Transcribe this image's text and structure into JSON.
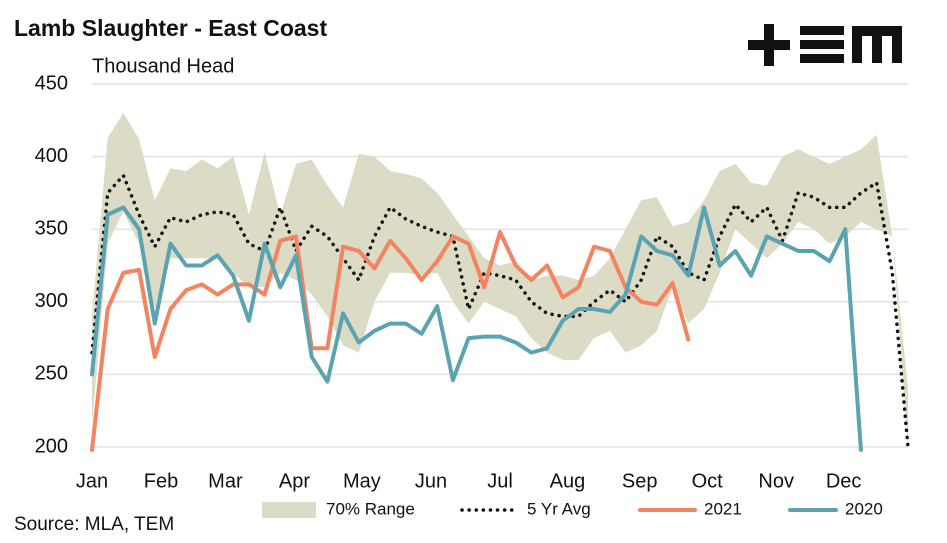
{
  "chart_data": {
    "type": "line",
    "title": "Lamb Slaughter - East Coast",
    "subtitle": "Thousand Head",
    "source": "Source: MLA, TEM",
    "x": [
      1,
      2,
      3,
      4,
      5,
      6,
      7,
      8,
      9,
      10,
      11,
      12,
      13,
      14,
      15,
      16,
      17,
      18,
      19,
      20,
      21,
      22,
      23,
      24,
      25,
      26,
      27,
      28,
      29,
      30,
      31,
      32,
      33,
      34,
      35,
      36,
      37,
      38,
      39,
      40,
      41,
      42,
      43,
      44,
      45,
      46,
      47,
      48,
      49,
      50,
      51,
      52,
      53
    ],
    "xlim": [
      1,
      53
    ],
    "xticks": [
      {
        "value": 1,
        "label": "Jan"
      },
      {
        "value": 5.4,
        "label": "Feb"
      },
      {
        "value": 9.5,
        "label": "Mar"
      },
      {
        "value": 13.9,
        "label": "Apr"
      },
      {
        "value": 18.2,
        "label": "May"
      },
      {
        "value": 22.6,
        "label": "Jun"
      },
      {
        "value": 27,
        "label": "Jul"
      },
      {
        "value": 31.3,
        "label": "Aug"
      },
      {
        "value": 35.9,
        "label": "Sep"
      },
      {
        "value": 40.2,
        "label": "Oct"
      },
      {
        "value": 44.6,
        "label": "Nov"
      },
      {
        "value": 48.9,
        "label": "Dec"
      }
    ],
    "ylim": [
      200,
      450
    ],
    "yticks": [
      200,
      250,
      300,
      350,
      400,
      450
    ],
    "grid": true,
    "legend": "bottom",
    "range": {
      "name": "70% Range",
      "color": "#dcdcc6",
      "upper": [
        290,
        413,
        430,
        412,
        370,
        392,
        390,
        398,
        392,
        400,
        360,
        403,
        360,
        395,
        398,
        380,
        365,
        402,
        400,
        390,
        388,
        385,
        375,
        360,
        345,
        330,
        325,
        328,
        315,
        318,
        318,
        315,
        318,
        330,
        350,
        370,
        372,
        352,
        355,
        370,
        390,
        395,
        382,
        380,
        400,
        405,
        400,
        395,
        400,
        405,
        415,
        345,
        240
      ],
      "lower": [
        215,
        340,
        362,
        340,
        295,
        330,
        330,
        330,
        330,
        320,
        310,
        310,
        320,
        315,
        305,
        290,
        270,
        265,
        300,
        320,
        320,
        318,
        320,
        300,
        285,
        300,
        295,
        290,
        275,
        265,
        260,
        260,
        275,
        280,
        265,
        270,
        280,
        310,
        285,
        295,
        320,
        350,
        340,
        330,
        340,
        355,
        350,
        340,
        345,
        355,
        350,
        345,
        200
      ]
    },
    "series": [
      {
        "name": "5 Yr Avg",
        "color": "#111111",
        "dash": true,
        "values": [
          265,
          375,
          387,
          360,
          338,
          358,
          355,
          360,
          362,
          360,
          340,
          335,
          365,
          335,
          352,
          345,
          330,
          315,
          345,
          365,
          357,
          352,
          348,
          345,
          295,
          320,
          318,
          315,
          300,
          292,
          290,
          290,
          300,
          308,
          300,
          315,
          345,
          338,
          320,
          315,
          345,
          367,
          355,
          365,
          342,
          375,
          372,
          365,
          365,
          375,
          382,
          320,
          200
        ]
      },
      {
        "name": "2021",
        "color": "#f4845f",
        "dash": false,
        "values": [
          198,
          295,
          320,
          322,
          262,
          295,
          308,
          312,
          305,
          312,
          312,
          305,
          342,
          345,
          268,
          268,
          338,
          335,
          323,
          342,
          330,
          315,
          328,
          345,
          340,
          310,
          348,
          325,
          315,
          325,
          303,
          310,
          338,
          335,
          310,
          300,
          298,
          313,
          274,
          null,
          null,
          null,
          null,
          null,
          null,
          null,
          null,
          null,
          null,
          null,
          null,
          null,
          null
        ]
      },
      {
        "name": "2020",
        "color": "#5ba3b0",
        "dash": false,
        "values": [
          250,
          360,
          365,
          350,
          285,
          340,
          325,
          325,
          332,
          318,
          287,
          340,
          310,
          332,
          262,
          245,
          292,
          272,
          280,
          285,
          285,
          278,
          297,
          246,
          275,
          276,
          276,
          272,
          265,
          268,
          287,
          295,
          295,
          293,
          305,
          345,
          335,
          332,
          318,
          365,
          325,
          335,
          318,
          345,
          340,
          335,
          335,
          328,
          350,
          198,
          null,
          null,
          null
        ]
      }
    ]
  }
}
